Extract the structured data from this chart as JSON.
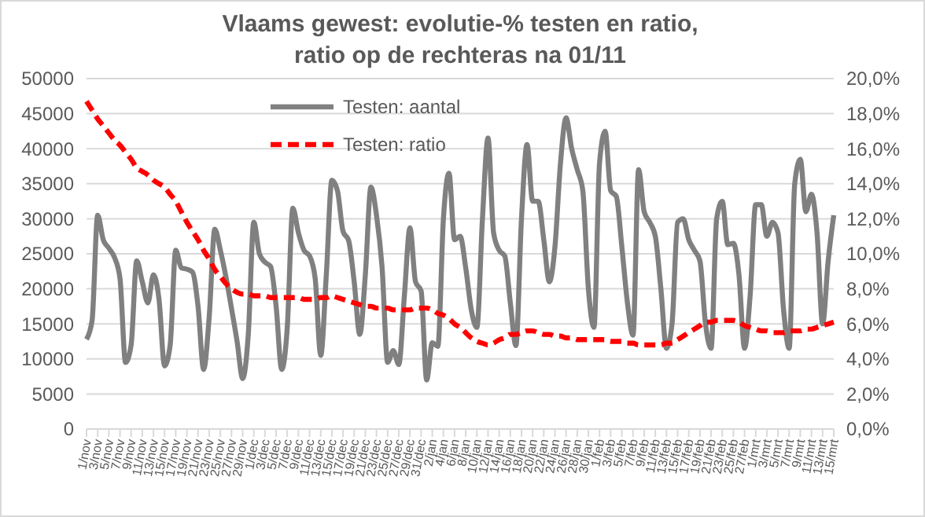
{
  "chart_data": {
    "type": "line",
    "title": "Vlaams gewest: evolutie-% testen en ratio, ratio op de rechteras na 01/11",
    "categories": [
      "1/nov",
      null,
      "3/nov",
      null,
      "5/nov",
      null,
      "7/nov",
      null,
      "9/nov",
      null,
      "11/nov",
      null,
      "13/nov",
      null,
      "15/nov",
      null,
      "17/nov",
      null,
      "19/nov",
      null,
      "21/nov",
      null,
      "23/nov",
      null,
      "25/nov",
      null,
      "27/nov",
      null,
      "29/nov",
      null,
      "1/dec",
      null,
      "3/dec",
      null,
      "5/dec",
      null,
      "7/dec",
      null,
      "9/dec",
      null,
      "11/dec",
      null,
      "13/dec",
      null,
      "15/dec",
      null,
      "17/dec",
      null,
      "19/dec",
      null,
      "21/dec",
      null,
      "23/dec",
      null,
      "25/dec",
      null,
      "27/dec",
      null,
      "29/dec",
      null,
      "31/dec",
      null,
      "2/jan",
      null,
      "4/jan",
      null,
      "6/jan",
      null,
      "8/jan",
      null,
      "10/jan",
      null,
      "12/jan",
      null,
      "14/jan",
      null,
      "16/jan",
      null,
      "18/jan",
      null,
      "20/jan",
      null,
      "22/jan",
      null,
      "24/jan",
      null,
      "26/jan",
      null,
      "28/jan",
      null,
      "30/jan",
      null,
      "1/feb",
      null,
      "3/feb",
      null,
      "5/feb",
      null,
      "7/feb",
      null,
      "9/feb",
      null,
      "11/feb",
      null,
      "13/feb",
      null,
      "15/feb",
      null,
      "17/feb",
      null,
      "19/feb",
      null,
      "21/feb",
      null,
      "23/feb",
      null,
      "25/feb",
      null,
      "27/feb",
      null,
      "1/mrt",
      null,
      "3/mrt",
      null,
      "5/mrt",
      null,
      "7/mrt",
      null,
      "9/mrt",
      null,
      "11/mrt",
      null,
      "13/mrt",
      null,
      "15/mrt"
    ],
    "series": [
      {
        "name": "Testen: aantal",
        "color": "#808080",
        "line_style": "solid",
        "values": [
          12800,
          15500,
          30500,
          27000,
          25800,
          24500,
          21500,
          9500,
          12000,
          24000,
          21000,
          18000,
          22000,
          18500,
          9000,
          12000,
          25500,
          23000,
          22800,
          22400,
          17500,
          8500,
          16000,
          28500,
          25500,
          21700,
          17200,
          12500,
          7200,
          13400,
          29500,
          25000,
          23800,
          23200,
          17500,
          8500,
          14500,
          31500,
          28000,
          25500,
          24700,
          21500,
          10500,
          22000,
          35500,
          34000,
          28200,
          26900,
          21000,
          13500,
          22000,
          34500,
          30500,
          23100,
          9500,
          11200,
          9200,
          19000,
          28700,
          21000,
          19700,
          7000,
          12300,
          11800,
          30000,
          36500,
          27000,
          27500,
          23000,
          17000,
          14500,
          30000,
          41500,
          28000,
          25500,
          24700,
          18000,
          11900,
          30000,
          40600,
          32500,
          32500,
          27000,
          21000,
          26000,
          38000,
          44400,
          40000,
          37000,
          34000,
          20000,
          14500,
          38000,
          42500,
          34000,
          33200,
          26000,
          18000,
          13400,
          37000,
          31000,
          29500,
          27500,
          20000,
          11500,
          15000,
          29500,
          30000,
          27000,
          25500,
          24000,
          15000,
          11500,
          30000,
          32500,
          26300,
          26500,
          22000,
          11500,
          19000,
          32000,
          32000,
          27500,
          29500,
          28000,
          17000,
          11500,
          35000,
          38500,
          31000,
          33500,
          28000,
          15000,
          24000,
          30500
        ]
      },
      {
        "name": "Testen: ratio",
        "axis": "y2",
        "color": "#ff0000",
        "line_style": "dashed",
        "values": [
          18.7,
          18.2,
          17.7,
          17.3,
          16.9,
          16.5,
          16.2,
          15.8,
          15.4,
          14.9,
          14.7,
          14.5,
          14.2,
          14.0,
          13.8,
          13.4,
          13.0,
          12.4,
          11.8,
          11.3,
          10.8,
          10.2,
          9.7,
          9.1,
          8.7,
          8.3,
          8.0,
          7.8,
          7.7,
          7.7,
          7.6,
          7.6,
          7.6,
          7.5,
          7.5,
          7.5,
          7.5,
          7.5,
          7.5,
          7.4,
          7.4,
          7.4,
          7.5,
          7.5,
          7.6,
          7.5,
          7.4,
          7.3,
          7.2,
          7.1,
          7.0,
          7.0,
          6.9,
          6.9,
          6.9,
          6.8,
          6.8,
          6.8,
          6.8,
          6.9,
          6.9,
          6.9,
          6.8,
          6.6,
          6.5,
          6.3,
          6.0,
          5.8,
          5.5,
          5.2,
          5.0,
          4.9,
          4.8,
          4.9,
          5.1,
          5.2,
          5.4,
          5.4,
          5.5,
          5.6,
          5.6,
          5.5,
          5.4,
          5.4,
          5.3,
          5.3,
          5.2,
          5.2,
          5.1,
          5.1,
          5.1,
          5.1,
          5.1,
          5.1,
          5.0,
          5.0,
          5.0,
          4.9,
          4.9,
          4.8,
          4.8,
          4.8,
          4.8,
          4.8,
          4.9,
          4.9,
          5.1,
          5.3,
          5.5,
          5.7,
          5.9,
          6.1,
          6.1,
          6.2,
          6.2,
          6.2,
          6.2,
          6.1,
          5.9,
          5.8,
          5.7,
          5.6,
          5.6,
          5.5,
          5.5,
          5.5,
          5.6,
          5.6,
          5.6,
          5.7,
          5.7,
          5.8,
          5.9,
          6.0,
          6.1
        ]
      }
    ],
    "ylim": [
      0,
      50000
    ],
    "yticks": [
      0,
      5000,
      10000,
      15000,
      20000,
      25000,
      30000,
      35000,
      40000,
      45000,
      50000
    ],
    "y2lim": [
      0,
      20
    ],
    "y2ticks": [
      {
        "value": 0,
        "label": "0,0%"
      },
      {
        "value": 2,
        "label": "2,0%"
      },
      {
        "value": 4,
        "label": "4,0%"
      },
      {
        "value": 6,
        "label": "6,0%"
      },
      {
        "value": 8,
        "label": "8,0%"
      },
      {
        "value": 10,
        "label": "10,0%"
      },
      {
        "value": 12,
        "label": "12,0%"
      },
      {
        "value": 14,
        "label": "14,0%"
      },
      {
        "value": 16,
        "label": "16,0%"
      },
      {
        "value": 18,
        "label": "18,0%"
      },
      {
        "value": 20,
        "label": "20,0%"
      }
    ],
    "grid": "y",
    "legend": "top"
  }
}
